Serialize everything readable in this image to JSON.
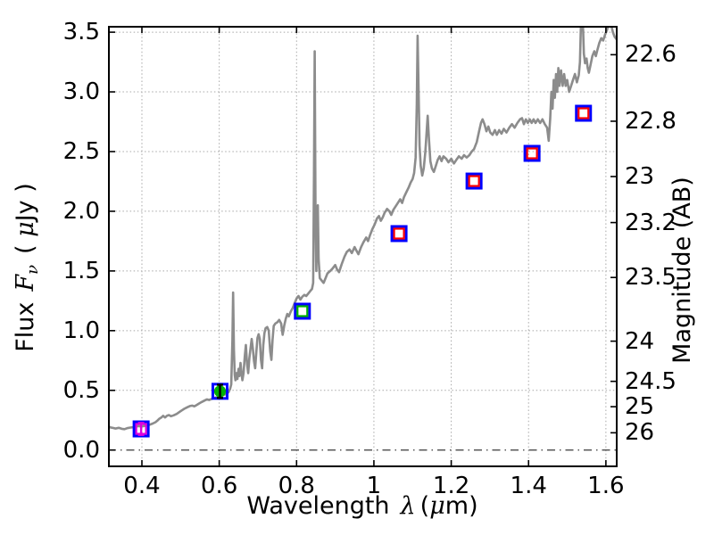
{
  "figure": {
    "background": "#ffffff",
    "text_color": "#000000",
    "frame_color": "#000000"
  },
  "chart_data": {
    "type": "line",
    "title": "",
    "xlabel": {
      "word": "Wavelength",
      "symbol": "λ",
      "unit_open": "(",
      "unit_mu": "μ",
      "unit_close": "m)"
    },
    "ylabel_left": {
      "word": "Flux",
      "symbol": "F",
      "subscript": "ν",
      "unit_open": "( ",
      "unit_mu": "μ",
      "unit_close": "Jy )"
    },
    "ylabel_right": "Magnitude (AB)",
    "x_axis": {
      "range": [
        0.3123,
        1.6303
      ],
      "ticks": [
        {
          "value": 0.4,
          "label": "0.4"
        },
        {
          "value": 0.6,
          "label": "0.6"
        },
        {
          "value": 0.8,
          "label": "0.8"
        },
        {
          "value": 1.0,
          "label": "1"
        },
        {
          "value": 1.2,
          "label": "1.2"
        },
        {
          "value": 1.4,
          "label": "1.4"
        },
        {
          "value": 1.6,
          "label": "1.6"
        }
      ]
    },
    "y_axis_left": {
      "range": [
        -0.144,
        3.553
      ],
      "ticks": [
        {
          "value": 0.0,
          "label": "0.0"
        },
        {
          "value": 0.5,
          "label": "0.5"
        },
        {
          "value": 1.0,
          "label": "1.0"
        },
        {
          "value": 1.5,
          "label": "1.5"
        },
        {
          "value": 2.0,
          "label": "2.0"
        },
        {
          "value": 2.5,
          "label": "2.5"
        },
        {
          "value": 3.0,
          "label": "3.0"
        },
        {
          "value": 3.5,
          "label": "3.5"
        }
      ]
    },
    "y_axis_right": {
      "ab_zeropoint": 23.9,
      "ticks": [
        {
          "value": 22.6,
          "label": "22.6"
        },
        {
          "value": 22.8,
          "label": "22.8"
        },
        {
          "value": 23.0,
          "label": "23"
        },
        {
          "value": 23.2,
          "label": "23.2"
        },
        {
          "value": 23.5,
          "label": "23.5"
        },
        {
          "value": 24.0,
          "label": "24"
        },
        {
          "value": 24.5,
          "label": "24.5"
        },
        {
          "value": 25.0,
          "label": "25"
        },
        {
          "value": 26.0,
          "label": "26"
        }
      ]
    },
    "grid": {
      "show": true,
      "style": "dotted",
      "color": "#a8a8a8"
    },
    "zero_line": {
      "y": 0.0,
      "style": "dash-dot",
      "color": "#3a3a3a"
    },
    "spectrum": {
      "color": "#8c8c8c",
      "linewidth": 2.6,
      "points": [
        [
          0.312,
          0.205
        ],
        [
          0.318,
          0.19
        ],
        [
          0.325,
          0.185
        ],
        [
          0.332,
          0.18
        ],
        [
          0.34,
          0.186
        ],
        [
          0.348,
          0.178
        ],
        [
          0.355,
          0.175
        ],
        [
          0.362,
          0.183
        ],
        [
          0.37,
          0.188
        ],
        [
          0.378,
          0.191
        ],
        [
          0.385,
          0.197
        ],
        [
          0.392,
          0.201
        ],
        [
          0.398,
          0.196
        ],
        [
          0.405,
          0.201
        ],
        [
          0.412,
          0.206
        ],
        [
          0.42,
          0.212
        ],
        [
          0.428,
          0.222
        ],
        [
          0.435,
          0.233
        ],
        [
          0.44,
          0.246
        ],
        [
          0.445,
          0.262
        ],
        [
          0.45,
          0.272
        ],
        [
          0.455,
          0.286
        ],
        [
          0.46,
          0.273
        ],
        [
          0.465,
          0.288
        ],
        [
          0.47,
          0.293
        ],
        [
          0.475,
          0.283
        ],
        [
          0.482,
          0.291
        ],
        [
          0.49,
          0.303
        ],
        [
          0.497,
          0.318
        ],
        [
          0.503,
          0.332
        ],
        [
          0.51,
          0.346
        ],
        [
          0.517,
          0.358
        ],
        [
          0.524,
          0.368
        ],
        [
          0.53,
          0.372
        ],
        [
          0.536,
          0.366
        ],
        [
          0.542,
          0.378
        ],
        [
          0.548,
          0.39
        ],
        [
          0.555,
          0.403
        ],
        [
          0.562,
          0.415
        ],
        [
          0.568,
          0.424
        ],
        [
          0.574,
          0.419
        ],
        [
          0.58,
          0.428
        ],
        [
          0.587,
          0.436
        ],
        [
          0.593,
          0.441
        ],
        [
          0.6,
          0.448
        ],
        [
          0.607,
          0.456
        ],
        [
          0.613,
          0.463
        ],
        [
          0.619,
          0.471
        ],
        [
          0.624,
          0.484
        ],
        [
          0.628,
          0.512
        ],
        [
          0.631,
          0.55
        ],
        [
          0.634,
          0.92
        ],
        [
          0.636,
          1.32
        ],
        [
          0.638,
          0.84
        ],
        [
          0.64,
          0.63
        ],
        [
          0.642,
          0.585
        ],
        [
          0.645,
          0.645
        ],
        [
          0.647,
          0.595
        ],
        [
          0.65,
          0.68
        ],
        [
          0.652,
          0.62
        ],
        [
          0.655,
          0.73
        ],
        [
          0.658,
          0.63
        ],
        [
          0.66,
          0.585
        ],
        [
          0.663,
          0.645
        ],
        [
          0.666,
          0.78
        ],
        [
          0.669,
          0.88
        ],
        [
          0.672,
          0.72
        ],
        [
          0.675,
          0.645
        ],
        [
          0.678,
          0.77
        ],
        [
          0.681,
          0.85
        ],
        [
          0.684,
          0.93
        ],
        [
          0.687,
          0.85
        ],
        [
          0.69,
          0.745
        ],
        [
          0.693,
          0.685
        ],
        [
          0.696,
          0.82
        ],
        [
          0.699,
          0.94
        ],
        [
          0.702,
          0.97
        ],
        [
          0.705,
          0.93
        ],
        [
          0.708,
          0.755
        ],
        [
          0.711,
          0.685
        ],
        [
          0.714,
          0.88
        ],
        [
          0.717,
          0.98
        ],
        [
          0.72,
          1.02
        ],
        [
          0.724,
          1.03
        ],
        [
          0.728,
          1.0
        ],
        [
          0.732,
          0.825
        ],
        [
          0.735,
          0.755
        ],
        [
          0.738,
          0.925
        ],
        [
          0.741,
          1.04
        ],
        [
          0.745,
          1.06
        ],
        [
          0.75,
          1.07
        ],
        [
          0.755,
          1.09
        ],
        [
          0.76,
          1.06
        ],
        [
          0.764,
          0.965
        ],
        [
          0.768,
          1.04
        ],
        [
          0.772,
          1.1
        ],
        [
          0.776,
          1.14
        ],
        [
          0.78,
          1.12
        ],
        [
          0.785,
          1.16
        ],
        [
          0.79,
          1.19
        ],
        [
          0.795,
          1.23
        ],
        [
          0.8,
          1.27
        ],
        [
          0.805,
          1.29
        ],
        [
          0.81,
          1.26
        ],
        [
          0.815,
          1.285
        ],
        [
          0.82,
          1.3
        ],
        [
          0.825,
          1.29
        ],
        [
          0.83,
          1.31
        ],
        [
          0.835,
          1.33
        ],
        [
          0.84,
          1.35
        ],
        [
          0.843,
          1.4
        ],
        [
          0.845,
          2.3
        ],
        [
          0.847,
          3.34
        ],
        [
          0.849,
          2.0
        ],
        [
          0.851,
          1.5
        ],
        [
          0.853,
          1.8
        ],
        [
          0.855,
          2.05
        ],
        [
          0.857,
          1.6
        ],
        [
          0.86,
          1.44
        ],
        [
          0.865,
          1.42
        ],
        [
          0.87,
          1.4
        ],
        [
          0.875,
          1.44
        ],
        [
          0.88,
          1.48
        ],
        [
          0.887,
          1.5
        ],
        [
          0.893,
          1.52
        ],
        [
          0.9,
          1.55
        ],
        [
          0.905,
          1.51
        ],
        [
          0.91,
          1.49
        ],
        [
          0.917,
          1.56
        ],
        [
          0.924,
          1.62
        ],
        [
          0.93,
          1.66
        ],
        [
          0.937,
          1.68
        ],
        [
          0.943,
          1.65
        ],
        [
          0.95,
          1.7
        ],
        [
          0.955,
          1.67
        ],
        [
          0.96,
          1.64
        ],
        [
          0.967,
          1.7
        ],
        [
          0.973,
          1.74
        ],
        [
          0.98,
          1.78
        ],
        [
          0.985,
          1.75
        ],
        [
          0.99,
          1.8
        ],
        [
          0.996,
          1.85
        ],
        [
          1.002,
          1.89
        ],
        [
          1.008,
          1.94
        ],
        [
          1.013,
          1.96
        ],
        [
          1.018,
          1.92
        ],
        [
          1.023,
          1.95
        ],
        [
          1.028,
          1.99
        ],
        [
          1.034,
          2.02
        ],
        [
          1.04,
          2.0
        ],
        [
          1.045,
          1.97
        ],
        [
          1.05,
          2.01
        ],
        [
          1.056,
          2.04
        ],
        [
          1.062,
          2.07
        ],
        [
          1.068,
          2.1
        ],
        [
          1.073,
          2.07
        ],
        [
          1.078,
          2.12
        ],
        [
          1.084,
          2.16
        ],
        [
          1.09,
          2.2
        ],
        [
          1.095,
          2.24
        ],
        [
          1.1,
          2.27
        ],
        [
          1.104,
          2.32
        ],
        [
          1.108,
          2.45
        ],
        [
          1.111,
          2.9
        ],
        [
          1.113,
          3.47
        ],
        [
          1.115,
          3.1
        ],
        [
          1.118,
          2.55
        ],
        [
          1.121,
          2.38
        ],
        [
          1.125,
          2.3
        ],
        [
          1.129,
          2.36
        ],
        [
          1.133,
          2.5
        ],
        [
          1.136,
          2.65
        ],
        [
          1.139,
          2.8
        ],
        [
          1.142,
          2.62
        ],
        [
          1.146,
          2.42
        ],
        [
          1.15,
          2.36
        ],
        [
          1.155,
          2.33
        ],
        [
          1.16,
          2.38
        ],
        [
          1.165,
          2.43
        ],
        [
          1.17,
          2.46
        ],
        [
          1.175,
          2.42
        ],
        [
          1.18,
          2.46
        ],
        [
          1.187,
          2.44
        ],
        [
          1.193,
          2.41
        ],
        [
          1.2,
          2.44
        ],
        [
          1.207,
          2.4
        ],
        [
          1.213,
          2.43
        ],
        [
          1.22,
          2.46
        ],
        [
          1.227,
          2.44
        ],
        [
          1.233,
          2.47
        ],
        [
          1.24,
          2.45
        ],
        [
          1.247,
          2.47
        ],
        [
          1.253,
          2.5
        ],
        [
          1.259,
          2.52
        ],
        [
          1.266,
          2.58
        ],
        [
          1.272,
          2.67
        ],
        [
          1.277,
          2.74
        ],
        [
          1.281,
          2.77
        ],
        [
          1.286,
          2.73
        ],
        [
          1.291,
          2.67
        ],
        [
          1.296,
          2.71
        ],
        [
          1.301,
          2.66
        ],
        [
          1.307,
          2.64
        ],
        [
          1.313,
          2.68
        ],
        [
          1.318,
          2.64
        ],
        [
          1.324,
          2.68
        ],
        [
          1.33,
          2.65
        ],
        [
          1.336,
          2.69
        ],
        [
          1.343,
          2.66
        ],
        [
          1.35,
          2.7
        ],
        [
          1.357,
          2.73
        ],
        [
          1.364,
          2.7
        ],
        [
          1.371,
          2.74
        ],
        [
          1.378,
          2.77
        ],
        [
          1.383,
          2.78
        ],
        [
          1.388,
          2.73
        ],
        [
          1.393,
          2.77
        ],
        [
          1.398,
          2.74
        ],
        [
          1.403,
          2.77
        ],
        [
          1.408,
          2.74
        ],
        [
          1.413,
          2.77
        ],
        [
          1.418,
          2.74
        ],
        [
          1.424,
          2.77
        ],
        [
          1.43,
          2.74
        ],
        [
          1.436,
          2.77
        ],
        [
          1.442,
          2.73
        ],
        [
          1.448,
          2.7
        ],
        [
          1.452,
          2.59
        ],
        [
          1.456,
          2.78
        ],
        [
          1.459,
          3.0
        ],
        [
          1.462,
          2.86
        ],
        [
          1.465,
          3.1
        ],
        [
          1.468,
          2.95
        ],
        [
          1.471,
          3.15
        ],
        [
          1.474,
          3.0
        ],
        [
          1.477,
          3.2
        ],
        [
          1.48,
          3.05
        ],
        [
          1.484,
          3.18
        ],
        [
          1.488,
          3.05
        ],
        [
          1.492,
          3.15
        ],
        [
          1.496,
          3.05
        ],
        [
          1.5,
          3.1
        ],
        [
          1.505,
          3.0
        ],
        [
          1.51,
          3.05
        ],
        [
          1.515,
          3.1
        ],
        [
          1.52,
          3.15
        ],
        [
          1.525,
          3.08
        ],
        [
          1.53,
          3.14
        ],
        [
          1.533,
          3.25
        ],
        [
          1.536,
          3.62
        ],
        [
          1.54,
          3.62
        ],
        [
          1.543,
          3.32
        ],
        [
          1.546,
          3.24
        ],
        [
          1.55,
          3.28
        ],
        [
          1.553,
          3.2
        ],
        [
          1.556,
          3.16
        ],
        [
          1.56,
          3.22
        ],
        [
          1.565,
          3.3
        ],
        [
          1.57,
          3.34
        ],
        [
          1.574,
          3.3
        ],
        [
          1.578,
          3.35
        ],
        [
          1.583,
          3.41
        ],
        [
          1.588,
          3.45
        ],
        [
          1.593,
          3.43
        ],
        [
          1.598,
          3.48
        ],
        [
          1.603,
          3.52
        ],
        [
          1.608,
          3.57
        ],
        [
          1.613,
          3.57
        ],
        [
          1.618,
          3.5
        ],
        [
          1.623,
          3.46
        ],
        [
          1.63,
          3.43
        ]
      ]
    },
    "photometry": [
      {
        "x": 0.398,
        "y": 0.177,
        "shape": "square",
        "outer_color": "#0000ff",
        "inner_color": "#dd00dd",
        "err": 0.05,
        "err_color": "#dd00dd"
      },
      {
        "x": 0.602,
        "y": 0.492,
        "shape": "circle",
        "outer_color": "#0000ff",
        "inner_color": "#00b000",
        "err": 0.055,
        "err_color": "#000000"
      },
      {
        "x": 0.815,
        "y": 1.163,
        "shape": "square",
        "outer_color": "#0000ff",
        "inner_color": "#00b000",
        "err": 0,
        "err_color": ""
      },
      {
        "x": 1.065,
        "y": 1.813,
        "shape": "square",
        "outer_color": "#0000ff",
        "inner_color": "#ff0000",
        "err": 0,
        "err_color": ""
      },
      {
        "x": 1.259,
        "y": 2.253,
        "shape": "square",
        "outer_color": "#0000ff",
        "inner_color": "#ff0000",
        "err": 0,
        "err_color": ""
      },
      {
        "x": 1.409,
        "y": 2.485,
        "shape": "square",
        "outer_color": "#0000ff",
        "inner_color": "#ff0000",
        "err": 0,
        "err_color": ""
      },
      {
        "x": 1.542,
        "y": 2.821,
        "shape": "square",
        "outer_color": "#0000ff",
        "inner_color": "#ff0000",
        "err": 0,
        "err_color": ""
      }
    ]
  }
}
